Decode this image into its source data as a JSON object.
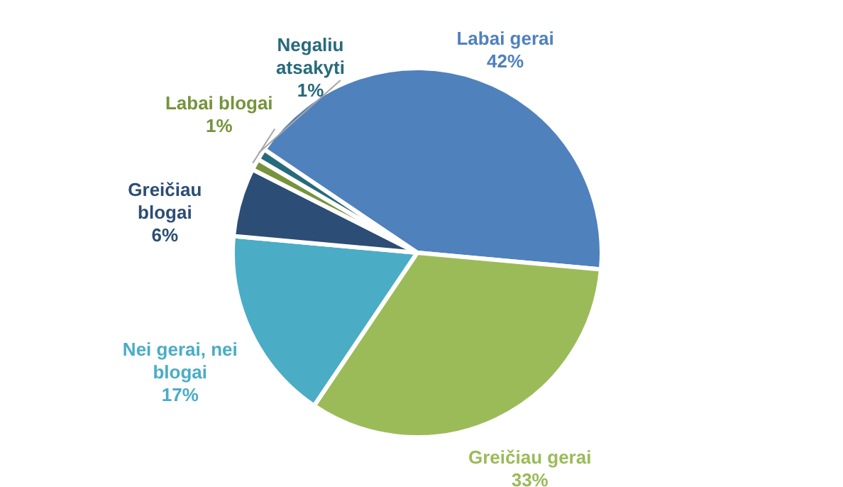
{
  "chart_data": {
    "type": "pie",
    "categories": [
      "Labai gerai",
      "Greičiau gerai",
      "Nei gerai, nei blogai",
      "Greičiau blogai",
      "Labai blogai",
      "Negaliu atsakyti"
    ],
    "values": [
      42,
      33,
      17,
      6,
      1,
      1
    ],
    "colors": [
      "#4f81bd",
      "#9bbb59",
      "#4bacc6",
      "#2c4d75",
      "#77933c",
      "#276a7c"
    ],
    "value_labels": [
      "42%",
      "33%",
      "17%",
      "6%",
      "1%",
      "1%"
    ],
    "legend": false
  }
}
